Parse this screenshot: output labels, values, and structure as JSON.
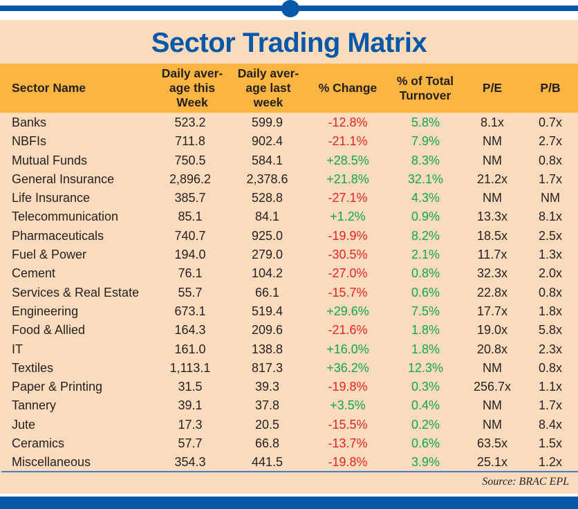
{
  "title": "Sector Trading Matrix",
  "colors": {
    "brand_blue": "#0557a8",
    "header_bg": "#fbb540",
    "panel_bg": "#fddbbd",
    "negative": "#ec2227",
    "positive": "#10a64a"
  },
  "columns": [
    "Sector Name",
    "Daily aver-\nage this\nWeek",
    "Daily aver-\nage last\nweek",
    "% Change",
    "% of Total\nTurnover",
    "P/E",
    "P/B"
  ],
  "rows": [
    {
      "sector": "Banks",
      "this_week": "523.2",
      "last_week": "599.9",
      "change": "-12.8%",
      "turnover_share": "5.8%",
      "pe": "8.1x",
      "pb": "0.7x"
    },
    {
      "sector": "NBFIs",
      "this_week": "711.8",
      "last_week": "902.4",
      "change": "-21.1%",
      "turnover_share": "7.9%",
      "pe": "NM",
      "pb": "2.7x"
    },
    {
      "sector": "Mutual Funds",
      "this_week": "750.5",
      "last_week": "584.1",
      "change": "+28.5%",
      "turnover_share": "8.3%",
      "pe": "NM",
      "pb": "0.8x"
    },
    {
      "sector": "General Insurance",
      "this_week": "2,896.2",
      "last_week": "2,378.6",
      "change": "+21.8%",
      "turnover_share": "32.1%",
      "pe": "21.2x",
      "pb": "1.7x"
    },
    {
      "sector": "Life Insurance",
      "this_week": "385.7",
      "last_week": "528.8",
      "change": "-27.1%",
      "turnover_share": "4.3%",
      "pe": "NM",
      "pb": "NM"
    },
    {
      "sector": "Telecommunication",
      "this_week": "85.1",
      "last_week": "84.1",
      "change": "+1.2%",
      "turnover_share": "0.9%",
      "pe": "13.3x",
      "pb": "8.1x"
    },
    {
      "sector": "Pharmaceuticals",
      "this_week": "740.7",
      "last_week": "925.0",
      "change": "-19.9%",
      "turnover_share": "8.2%",
      "pe": "18.5x",
      "pb": "2.5x"
    },
    {
      "sector": "Fuel & Power",
      "this_week": "194.0",
      "last_week": "279.0",
      "change": "-30.5%",
      "turnover_share": "2.1%",
      "pe": "11.7x",
      "pb": "1.3x"
    },
    {
      "sector": "Cement",
      "this_week": "76.1",
      "last_week": "104.2",
      "change": "-27.0%",
      "turnover_share": "0.8%",
      "pe": "32.3x",
      "pb": "2.0x"
    },
    {
      "sector": "Services & Real Estate",
      "this_week": "55.7",
      "last_week": "66.1",
      "change": "-15.7%",
      "turnover_share": "0.6%",
      "pe": "22.8x",
      "pb": "0.8x"
    },
    {
      "sector": "Engineering",
      "this_week": "673.1",
      "last_week": "519.4",
      "change": "+29.6%",
      "turnover_share": "7.5%",
      "pe": "17.7x",
      "pb": "1.8x"
    },
    {
      "sector": "Food & Allied",
      "this_week": "164.3",
      "last_week": "209.6",
      "change": "-21.6%",
      "turnover_share": "1.8%",
      "pe": "19.0x",
      "pb": "5.8x"
    },
    {
      "sector": "IT",
      "this_week": "161.0",
      "last_week": "138.8",
      "change": "+16.0%",
      "turnover_share": "1.8%",
      "pe": "20.8x",
      "pb": "2.3x"
    },
    {
      "sector": "Textiles",
      "this_week": "1,113.1",
      "last_week": "817.3",
      "change": "+36.2%",
      "turnover_share": "12.3%",
      "pe": "NM",
      "pb": "0.8x"
    },
    {
      "sector": "Paper & Printing",
      "this_week": "31.5",
      "last_week": "39.3",
      "change": "-19.8%",
      "turnover_share": "0.3%",
      "pe": "256.7x",
      "pb": "1.1x"
    },
    {
      "sector": "Tannery",
      "this_week": "39.1",
      "last_week": "37.8",
      "change": "+3.5%",
      "turnover_share": "0.4%",
      "pe": "NM",
      "pb": "1.7x"
    },
    {
      "sector": "Jute",
      "this_week": "17.3",
      "last_week": "20.5",
      "change": "-15.5%",
      "turnover_share": "0.2%",
      "pe": "NM",
      "pb": "8.4x"
    },
    {
      "sector": "Ceramics",
      "this_week": "57.7",
      "last_week": "66.8",
      "change": "-13.7%",
      "turnover_share": "0.6%",
      "pe": "63.5x",
      "pb": "1.5x"
    },
    {
      "sector": "Miscellaneous",
      "this_week": "354.3",
      "last_week": "441.5",
      "change": "-19.8%",
      "turnover_share": "3.9%",
      "pe": "25.1x",
      "pb": "1.2x"
    }
  ],
  "source": "Source: BRAC EPL"
}
